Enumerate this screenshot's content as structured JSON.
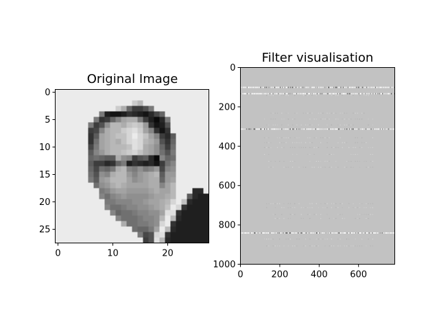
{
  "chart_data": [
    {
      "type": "heatmap",
      "title": "Original Image",
      "colormap": "gray",
      "grid": false,
      "xlim": [
        -0.5,
        27.5
      ],
      "ylim": [
        27.5,
        -0.5
      ],
      "xticks": [
        0,
        10,
        20
      ],
      "yticks": [
        0,
        5,
        10,
        15,
        20,
        25
      ],
      "xtick_labels": [
        "0",
        "10",
        "20"
      ],
      "ytick_labels": [
        "0",
        "5",
        "10",
        "15",
        "20",
        "25"
      ],
      "rows": 28,
      "cols": 28,
      "pixels": [
        "XXXXXXXXXXXXXXXXXXXXXXXXXXXX",
        "XXXXXXXXXXXXXXXXXXXXXXXXXXXX",
        "XXXXXXXXXXXXXXUSXXXXXXXXXXXX",
        "XXXXXXXXXXXURKGGIMXXXXXXXXXX",
        "XXXXXXXXMDCCDFEDCEHKXXXXXXXX",
        "XXXXXXXMFGKNQRRMGDBEMXXXXXXX",
        "XXXXXXMGIOSSRTUTPFCDIXXXXXXX",
        "XXXXXXGHNRSSUVWUQNFCFXXXXXXX",
        "XXXXXXFJQRSTTVXVTQNGEJXXXXXX",
        "XXXXXXFLQRSRTVWVSRPIFKXXXXXX",
        "XXXXXXHMQRSSSTWVRQOKGLXXXXXX",
        "XXXXXXJNPRSSTUVTRQOLIMXXXXXX",
        "XXXXXXKLKJJRONGIJEBNKLXXXXXX",
        "XXXXXXJGGEFKMDFEDECGLNXXXXXX",
        "XXXXXXKHLKMRSNMOMNPHNOXXXXXX",
        "XXXXXXLIONRSSPNPQRSJPPXXXXXX",
        "XXXXXXMJPQSSSQOPQRRKPQXXXXXX",
        "XXXXXXXLOPRSRQQQQRRNQSXXXXXX",
        "XXXXXXXXMNPQQPPPPQRQQSXXXEEX",
        "XXXXXXXXNLNOPOOOOPQQRSXXJEDD",
        "XXXXXXXXXMMNNNOOPQQRSVXTEDDD",
        "XXXXXXXXXNLLMNNOOPQRTXVFDDDD",
        "XXXXXXXXXXNKLLMNNOOQWWFDDDDD",
        "XXXXXXXXXXXNLLLMNNOSXSEDDDDD",
        "XXXXXXXXXXXXRLLMMNOVXFDDDDDD",
        "XXXXXXXXXXXXXXLKKMQXSEDDDDDD",
        "XXXXXXXXXXXXXXXMHIVWFDDDDDDD",
        "XXXXXXXXXXXXXXXXGIWSEDDDDDDD"
      ]
    },
    {
      "type": "heatmap",
      "title": "Filter visualisation",
      "colormap": "gray",
      "grid": false,
      "xlim": [
        0,
        784
      ],
      "ylim": [
        1000,
        0
      ],
      "xticks": [
        0,
        200,
        400,
        600
      ],
      "yticks": [
        0,
        200,
        400,
        600,
        800,
        1000
      ],
      "xtick_labels": [
        "0",
        "200",
        "400",
        "600"
      ],
      "ytick_labels": [
        "0",
        "200",
        "400",
        "600",
        "800",
        "1000"
      ],
      "background_level": 0.76,
      "strong_rows": [
        100,
        132,
        312,
        840
      ],
      "faint_rows": [
        140,
        230,
        260,
        290,
        355,
        380,
        405,
        440,
        475,
        505,
        690,
        710,
        745,
        765,
        870,
        905
      ]
    }
  ]
}
